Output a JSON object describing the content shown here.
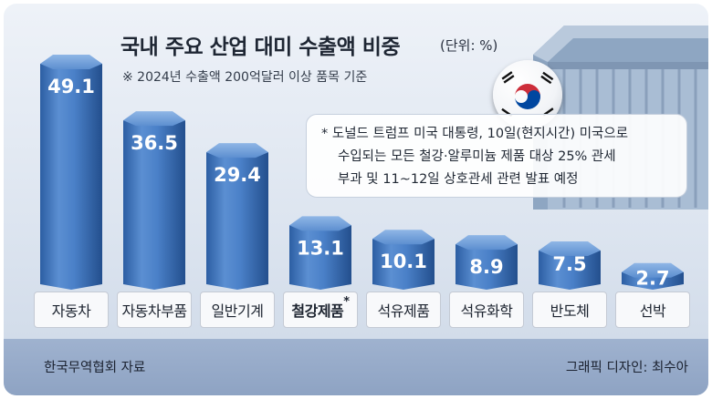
{
  "chart_data": {
    "type": "bar",
    "title": "국내 주요 산업 대미 수출액 비중",
    "unit": "(단위: %)",
    "subtitle": "※ 2024년 수출액 200억달러 이상 품목 기준",
    "categories": [
      "자동차",
      "자동차부품",
      "일반기계",
      "철강제품",
      "석유제품",
      "석유화학",
      "반도체",
      "선박"
    ],
    "values": [
      49.1,
      36.5,
      29.4,
      13.1,
      10.1,
      8.9,
      7.5,
      2.7
    ],
    "highlight": "철강제품",
    "highlight_mark": "*"
  },
  "note": {
    "lines": [
      "* 도널드 트럼프 미국 대통령, 10일(현지시간) 미국으로",
      "수입되는 모든 철강·알루미늄 제품 대상 25% 관세",
      "부과 및 11~12일 상호관세 관련 발표 예정"
    ]
  },
  "footer": {
    "source": "한국무역협회 자료",
    "credit": "그래픽 디자인: 최수아"
  },
  "colors": {
    "bar": "#3f78c4",
    "bar_dark": "#2f62a8",
    "bar_top": "#6d9fdc",
    "footer": "#9aaecb"
  }
}
